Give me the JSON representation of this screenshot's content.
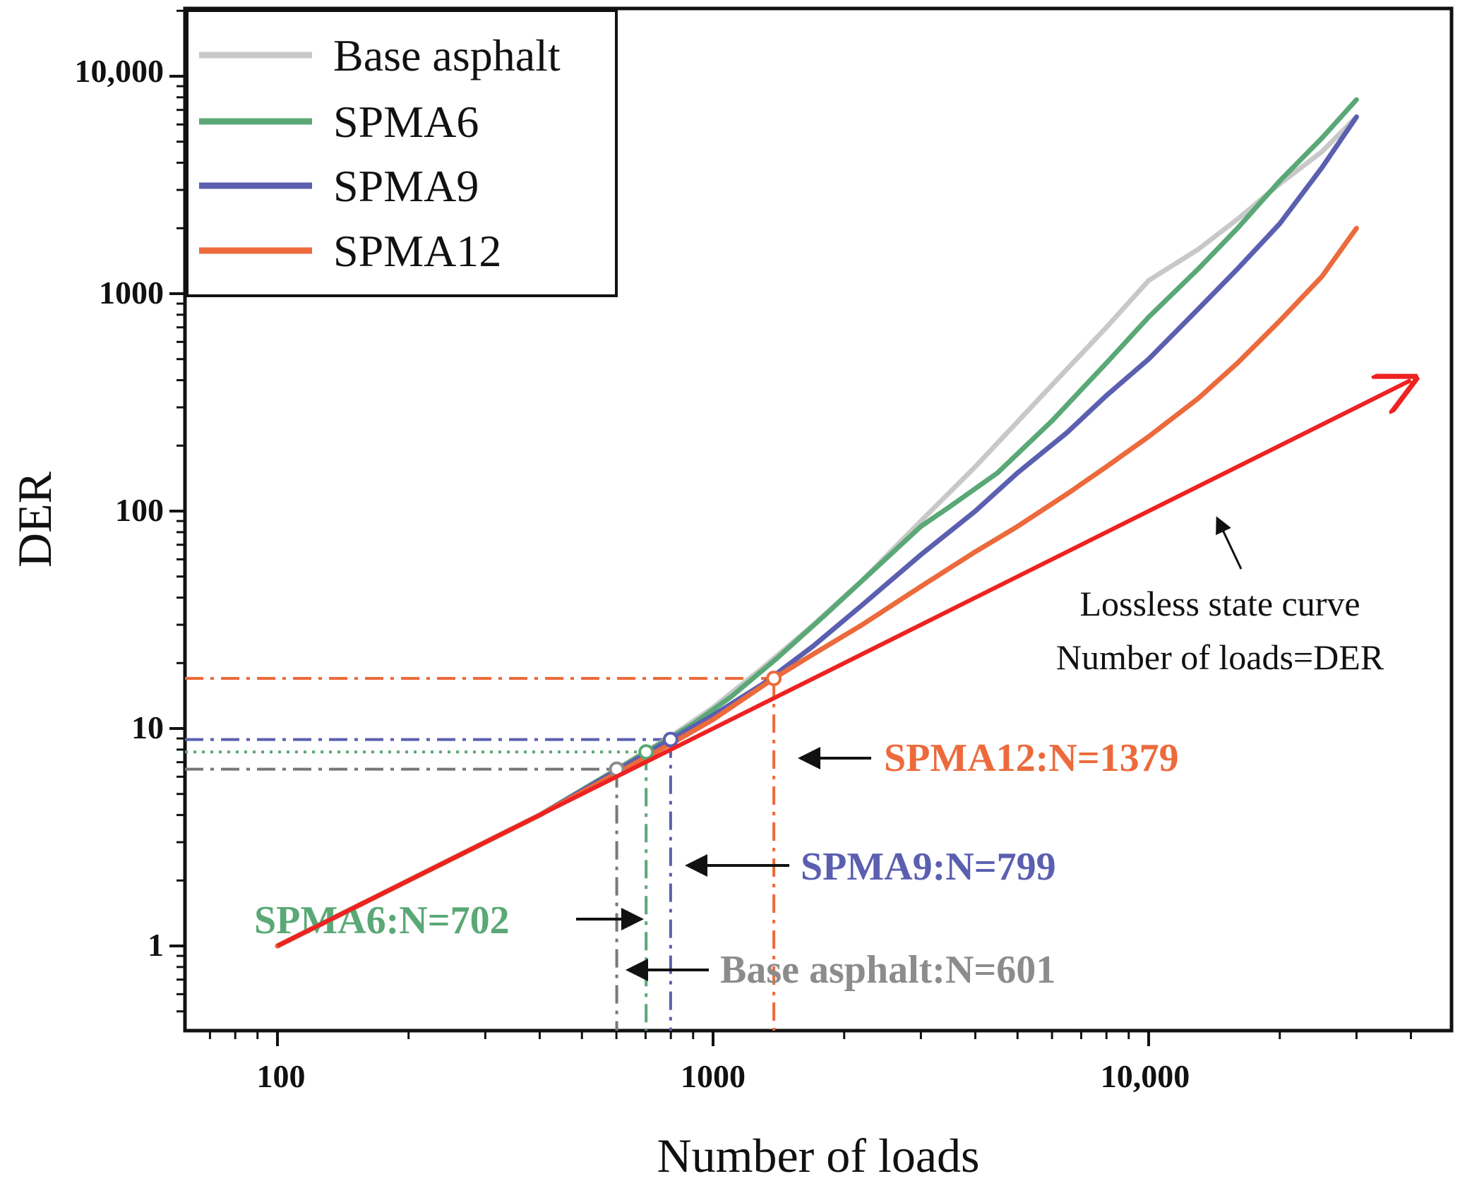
{
  "chart_data": {
    "type": "line",
    "title": "",
    "xlabel": "Number of loads",
    "ylabel": "DER",
    "xscale": "log",
    "yscale": "log",
    "xlim": [
      60,
      40000
    ],
    "ylim": [
      0.4,
      22000
    ],
    "x_ticks": [
      {
        "value": 100,
        "label": "100"
      },
      {
        "value": 1000,
        "label": "1000"
      },
      {
        "value": 10000,
        "label": "10,000"
      }
    ],
    "y_ticks": [
      {
        "value": 1,
        "label": "1"
      },
      {
        "value": 10,
        "label": "10"
      },
      {
        "value": 100,
        "label": "100"
      },
      {
        "value": 1000,
        "label": "1000"
      },
      {
        "value": 10000,
        "label": "10,000"
      }
    ],
    "legend_position": "top-left",
    "series": [
      {
        "name": "Base asphalt",
        "color": "#c8c8c8",
        "x": [
          100,
          200,
          400,
          601,
          800,
          1000,
          1300,
          1700,
          2200,
          3000,
          4000,
          6000,
          8000,
          10000,
          13000,
          16000,
          20000,
          25000,
          30000
        ],
        "y": [
          1,
          2,
          4,
          6.5,
          9.2,
          12.5,
          19,
          30,
          48,
          90,
          160,
          380,
          700,
          1150,
          1600,
          2200,
          3200,
          4500,
          6500
        ]
      },
      {
        "name": "SPMA6",
        "color": "#5aa876",
        "x": [
          100,
          200,
          400,
          702,
          900,
          1100,
          1400,
          1800,
          2300,
          3000,
          3500,
          4500,
          6000,
          8000,
          10000,
          13000,
          16000,
          20000,
          25000,
          30000
        ],
        "y": [
          1,
          2,
          4,
          7.8,
          10.5,
          14,
          21,
          33,
          52,
          85,
          105,
          150,
          260,
          480,
          780,
          1300,
          2000,
          3300,
          5200,
          7800
        ]
      },
      {
        "name": "SPMA9",
        "color": "#5b5fb0",
        "x": [
          100,
          200,
          400,
          799,
          1000,
          1300,
          1700,
          2200,
          3000,
          4000,
          5000,
          6500,
          8000,
          10000,
          13000,
          16000,
          20000,
          25000,
          30000
        ],
        "y": [
          1,
          2,
          4,
          8.9,
          11.5,
          16,
          24,
          37,
          63,
          100,
          150,
          230,
          340,
          500,
          850,
          1300,
          2100,
          3800,
          6500
        ]
      },
      {
        "name": "SPMA12",
        "color": "#ec6a3b",
        "x": [
          100,
          200,
          400,
          800,
          1000,
          1379,
          1700,
          2200,
          3000,
          4000,
          5000,
          6500,
          8000,
          10000,
          13000,
          16000,
          20000,
          25000,
          30000
        ],
        "y": [
          1,
          2,
          4,
          8.5,
          11,
          17,
          22,
          30,
          45,
          65,
          85,
          120,
          160,
          220,
          330,
          480,
          750,
          1200,
          2000
        ]
      }
    ],
    "lossless_line": {
      "name": "Lossless state curve",
      "color": "#ee2222",
      "x": [
        100,
        40000
      ],
      "y": [
        1,
        400
      ]
    },
    "critical_points": [
      {
        "series": "Base asphalt",
        "n": 601,
        "der": 6.5,
        "label": "Base asphalt:N=601",
        "color": "#8c8c8c",
        "ref_color": "#777777"
      },
      {
        "series": "SPMA6",
        "n": 702,
        "der": 7.8,
        "label": "SPMA6:N=702",
        "color": "#5aa876",
        "ref_color": "#5aa876"
      },
      {
        "series": "SPMA9",
        "n": 799,
        "der": 8.9,
        "label": "SPMA9:N=799",
        "color": "#5b5fb0",
        "ref_color": "#5b5fb0"
      },
      {
        "series": "SPMA12",
        "n": 1379,
        "der": 17,
        "label": "SPMA12:N=1379",
        "color": "#ec6a3b",
        "ref_color": "#ec6a3b"
      }
    ],
    "annotations": {
      "lossless_line1": "Lossless state curve",
      "lossless_line2": "Number of loads=DER"
    }
  }
}
